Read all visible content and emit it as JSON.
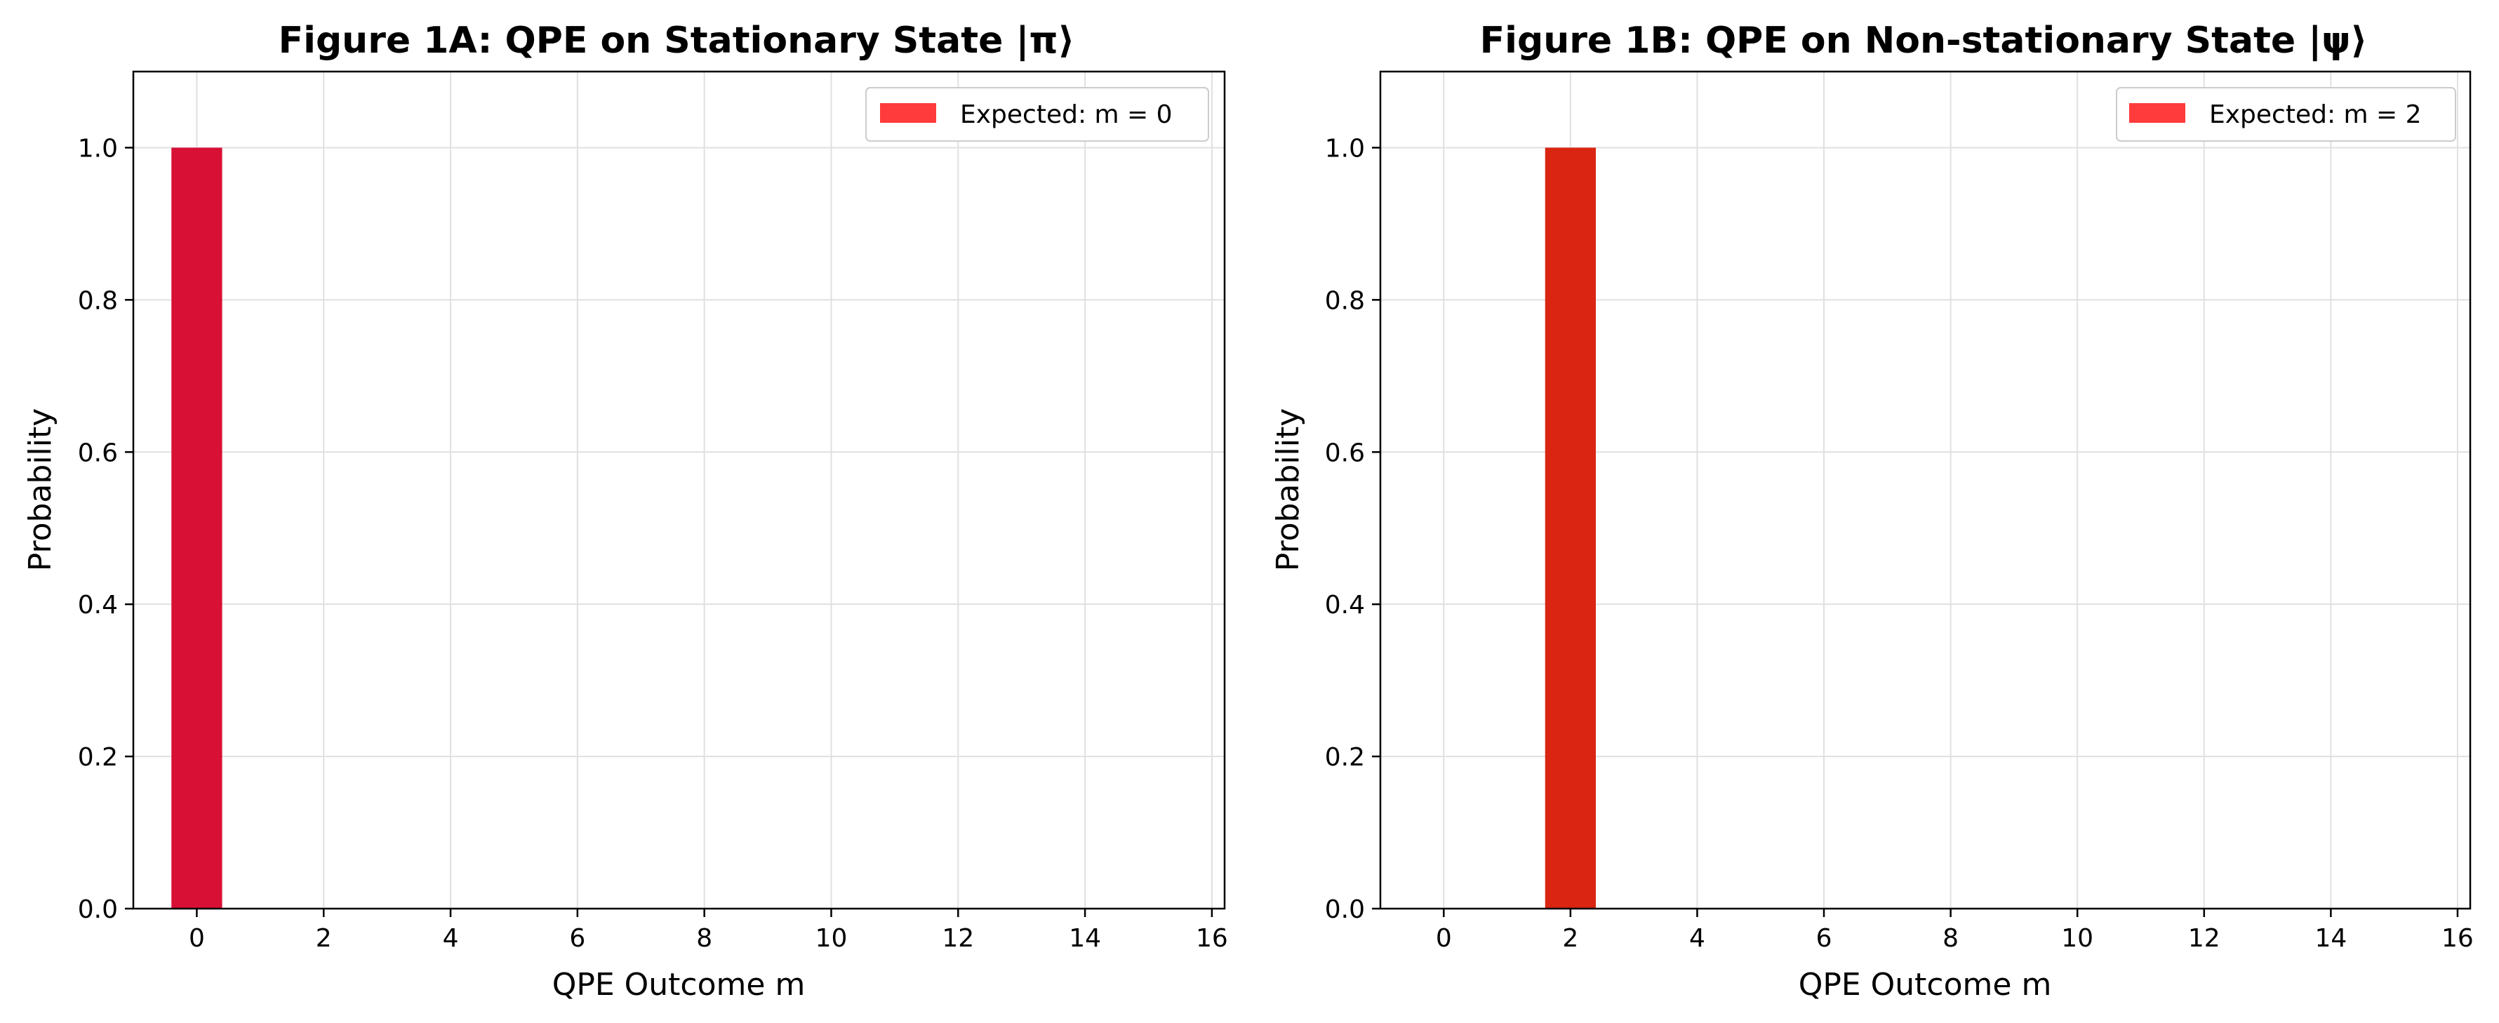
{
  "chart_data": [
    {
      "type": "bar",
      "title": "Figure 1A: QPE on Stationary State |π⟩",
      "xlabel": "QPE Outcome m",
      "ylabel": "Probability",
      "x": [
        0,
        1,
        2,
        3,
        4,
        5,
        6,
        7,
        8,
        9,
        10,
        11,
        12,
        13,
        14,
        15
      ],
      "values": [
        1.0,
        0,
        0,
        0,
        0,
        0,
        0,
        0,
        0,
        0,
        0,
        0,
        0,
        0,
        0,
        0
      ],
      "bar_color": "#d81036",
      "xlim": [
        -1,
        16.2
      ],
      "ylim": [
        0,
        1.1
      ],
      "xticks": [
        0,
        2,
        4,
        6,
        8,
        10,
        12,
        14,
        16
      ],
      "yticks": [
        "0.0",
        "0.2",
        "0.4",
        "0.6",
        "0.8",
        "1.0"
      ],
      "grid": true,
      "legend": {
        "placement": "top-right",
        "label": "Expected: m = 0",
        "color": "#ff3b3b"
      }
    },
    {
      "type": "bar",
      "title": "Figure 1B: QPE on Non-stationary State |ψ⟩",
      "xlabel": "QPE Outcome m",
      "ylabel": "Probability",
      "x": [
        0,
        1,
        2,
        3,
        4,
        5,
        6,
        7,
        8,
        9,
        10,
        11,
        12,
        13,
        14,
        15
      ],
      "values": [
        0,
        0,
        1.0,
        0,
        0,
        0,
        0,
        0,
        0,
        0,
        0,
        0,
        0,
        0,
        0,
        0
      ],
      "bar_color": "#d92512",
      "xlim": [
        -1,
        16.2
      ],
      "ylim": [
        0,
        1.1
      ],
      "xticks": [
        0,
        2,
        4,
        6,
        8,
        10,
        12,
        14,
        16
      ],
      "yticks": [
        "0.0",
        "0.2",
        "0.4",
        "0.6",
        "0.8",
        "1.0"
      ],
      "grid": true,
      "legend": {
        "placement": "top-right",
        "label": "Expected: m = 2",
        "color": "#ff3b3b"
      }
    }
  ]
}
